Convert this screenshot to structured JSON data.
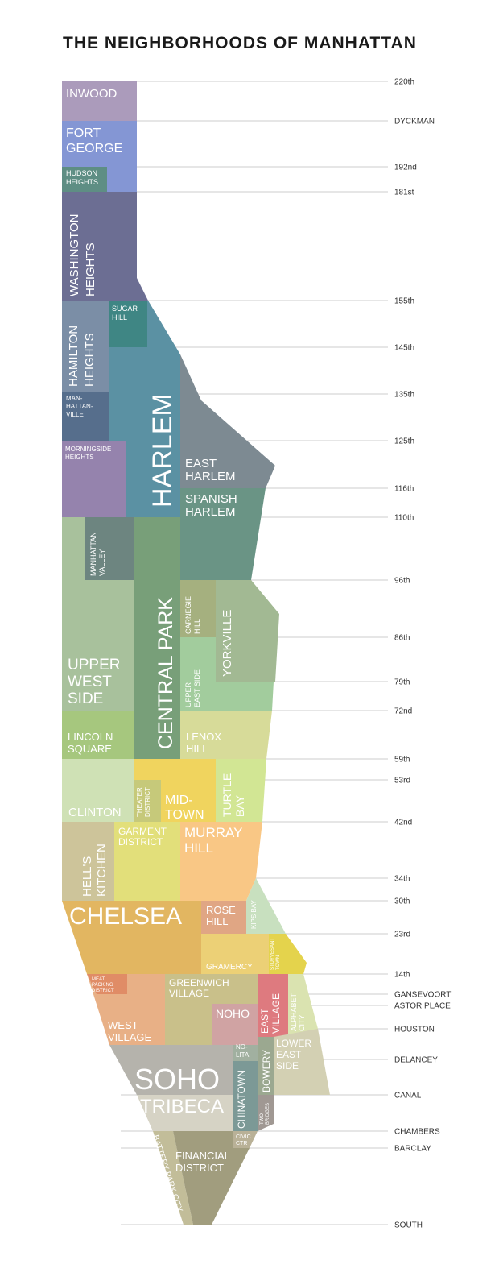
{
  "title": "THE NEIGHBORHOODS OF MANHATTAN",
  "streets": [
    "220th",
    "DYCKMAN",
    "192nd",
    "181st",
    "155th",
    "145th",
    "135th",
    "125th",
    "116th",
    "110th",
    "96th",
    "86th",
    "79th",
    "72nd",
    "59th",
    "53rd",
    "42nd",
    "34th",
    "30th",
    "23rd",
    "14th",
    "GANSEVOORT",
    "ASTOR PLACE",
    "HOUSTON",
    "DELANCEY",
    "CANAL",
    "CHAMBERS",
    "BARCLAY",
    "SOUTH"
  ],
  "neighborhoods": {
    "inwood": "INWOOD",
    "fort_george": [
      "FORT",
      "GEORGE"
    ],
    "hudson_heights": [
      "HUDSON",
      "HEIGHTS"
    ],
    "washington_heights": [
      "WASHINGTON",
      "HEIGHTS"
    ],
    "sugar_hill": [
      "SUGAR",
      "HILL"
    ],
    "hamilton_heights": [
      "HAMILTON",
      "HEIGHTS"
    ],
    "manhattanville": [
      "MAN-",
      "HATTAN-",
      "VILLE"
    ],
    "morningside_heights": [
      "MORNINGSIDE",
      "HEIGHTS"
    ],
    "harlem": "HARLEM",
    "east_harlem": [
      "EAST",
      "HARLEM"
    ],
    "spanish_harlem": [
      "SPANISH",
      "HARLEM"
    ],
    "manhattan_valley": [
      "MANHATTAN",
      "VALLEY"
    ],
    "central_park": "CENTRAL PARK",
    "carnegie_hill": [
      "CARNEGIE",
      "HILL"
    ],
    "yorkville": "YORKVILLE",
    "upper_east_side": [
      "UPPER",
      "EAST SIDE"
    ],
    "upper_west_side": [
      "UPPER",
      "WEST",
      "SIDE"
    ],
    "lincoln_square": [
      "LINCOLN",
      "SQUARE"
    ],
    "lenox_hill": [
      "LENOX",
      "HILL"
    ],
    "clinton": "CLINTON",
    "theater_district": [
      "THEATER",
      "DISTRICT"
    ],
    "midtown": [
      "MID-",
      "TOWN"
    ],
    "turtle_bay": [
      "TURTLE",
      "BAY"
    ],
    "hells_kitchen": [
      "HELL'S",
      "KITCHEN"
    ],
    "garment_district": [
      "GARMENT",
      "DISTRICT"
    ],
    "murray_hill": [
      "MURRAY",
      "HILL"
    ],
    "kips_bay": "KIPS BAY",
    "chelsea": "CHELSEA",
    "rose_hill": [
      "ROSE",
      "HILL"
    ],
    "gramercy": "GRAMERCY",
    "stuyvesant_town": [
      "STUYVESANT",
      "TOWN"
    ],
    "meatpacking_district": [
      "MEAT",
      "PACKING",
      "DISTRICT"
    ],
    "greenwich_village": [
      "GREENWICH",
      "VILLAGE"
    ],
    "east_village": [
      "EAST",
      "VILLAGE"
    ],
    "alphabet_city": [
      "ALPHABET",
      "CITY"
    ],
    "noho": "NOHO",
    "west_village": [
      "WEST",
      "VILLAGE"
    ],
    "nolita": [
      "NO-",
      "LITA"
    ],
    "lower_east_side": [
      "LOWER",
      "EAST",
      "SIDE"
    ],
    "soho": "SOHO",
    "chinatown": "CHINATOWN",
    "bowery": "BOWERY",
    "two_bridges": [
      "TWO",
      "BRIDGES"
    ],
    "tribeca": "TRIBECA",
    "civic_center": [
      "CIVIC",
      "CTR"
    ],
    "battery_park_city": "BATTERY PARK CITY",
    "financial_district": [
      "FINANCIAL",
      "DISTRICT"
    ]
  },
  "colors": {
    "inwood": "#ab9bbb",
    "fort_george": "#8496d4",
    "hudson_heights": "#5e8e84",
    "washington_heights": "#6c6e93",
    "sugar_hill": "#3f8684",
    "hamilton_heights": "#7b8ea6",
    "manhattanville": "#566e8c",
    "morningside_heights": "#9583ad",
    "harlem": "#5b91a3",
    "east_harlem": "#7d8a92",
    "spanish_harlem": "#6a9485",
    "manhattan_valley": "#6d8580",
    "central_park": "#789f79",
    "carnegie_hill": "#a5b07f",
    "yorkville": "#a2b993",
    "upper_east_side": "#a2cc9d",
    "upper_west_side": "#a8c19c",
    "lincoln_square": "#a6c77e",
    "lenox_hill": "#d7db99",
    "clinton": "#cfe1b5",
    "theater_district": "#c6c97a",
    "midtown": "#f0d45e",
    "turtle_bay": "#d2e694",
    "hells_kitchen": "#cdc49a",
    "garment_district": "#e2df7a",
    "murray_hill": "#f9c785",
    "kips_bay": "#c8e0bf",
    "chelsea": "#e2b661",
    "rose_hill": "#e0a684",
    "gramercy": "#ecd076",
    "stuyvesant_town": "#e4d34c",
    "meatpacking_district": "#e08c66",
    "greenwich_village": "#c9c08a",
    "east_village": "#de7a7f",
    "alphabet_city": "#dae3b0",
    "noho": "#d0a3a3",
    "west_village": "#e8b086",
    "nolita": "#a1b0a0",
    "lower_east_side": "#d3d0b3",
    "soho": "#b5b3ac",
    "chinatown": "#7c9996",
    "bowery": "#9ba890",
    "two_bridges": "#a09893",
    "tribeca": "#d6d3c5",
    "civic_center": "#b9b197",
    "battery_park_city": "#c2bd99",
    "financial_district": "#a19d7e"
  }
}
